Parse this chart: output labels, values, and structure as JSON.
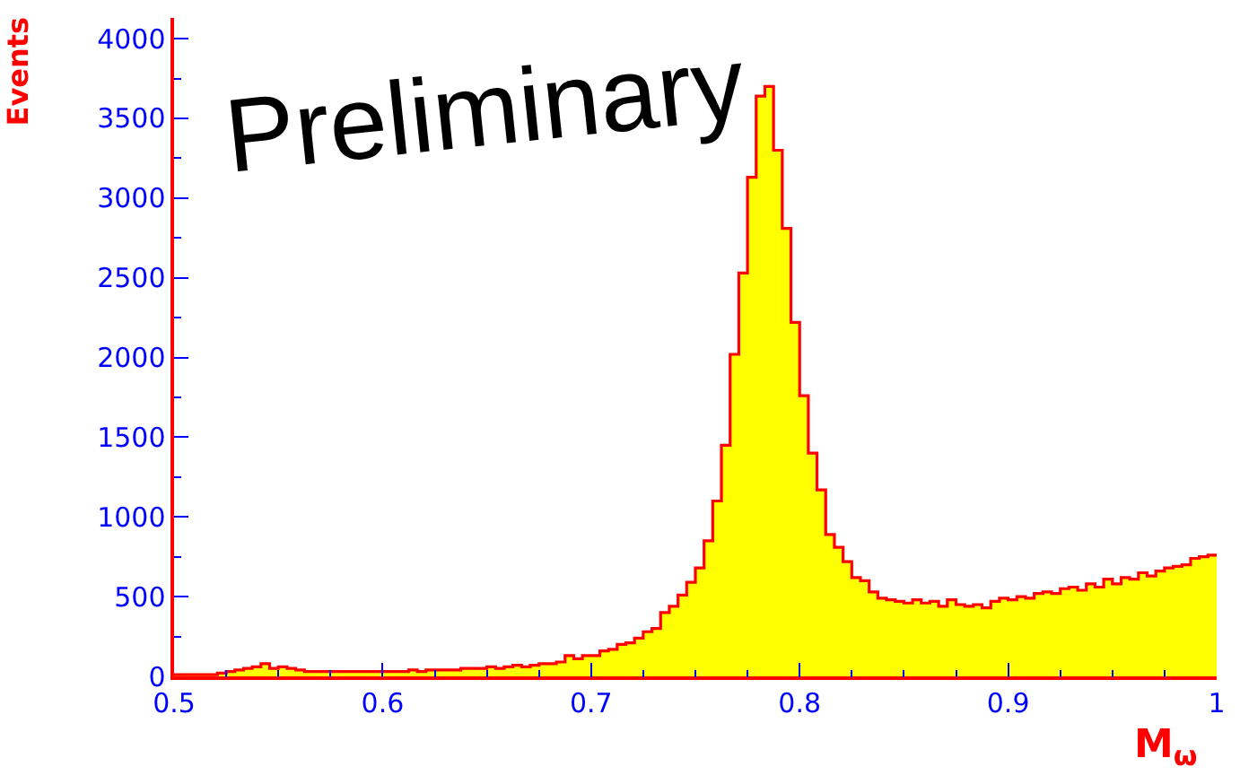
{
  "chart_data": {
    "type": "histogram",
    "xlabel": "M$_{ω}$",
    "ylabel": "Events",
    "annotations": [
      "Preliminary"
    ],
    "bins": [
      0.5,
      0.50417,
      0.50833,
      0.5125,
      0.51667,
      0.52083,
      0.525,
      0.52917,
      0.53333,
      0.5375,
      0.54167,
      0.54583,
      0.55,
      0.55417,
      0.55833,
      0.5625,
      0.56667,
      0.57083,
      0.575,
      0.57917,
      0.58333,
      0.5875,
      0.59167,
      0.59583,
      0.6,
      0.60417,
      0.60833,
      0.6125,
      0.61667,
      0.62083,
      0.625,
      0.62917,
      0.63333,
      0.6375,
      0.64167,
      0.64583,
      0.65,
      0.65417,
      0.65833,
      0.6625,
      0.66667,
      0.67083,
      0.675,
      0.67917,
      0.68333,
      0.6875,
      0.69167,
      0.69583,
      0.7,
      0.70417,
      0.70833,
      0.7125,
      0.71667,
      0.72083,
      0.725,
      0.72917,
      0.73333,
      0.7375,
      0.74167,
      0.74583,
      0.75,
      0.75417,
      0.75833,
      0.7625,
      0.76667,
      0.77083,
      0.775,
      0.77917,
      0.78333,
      0.7875,
      0.79167,
      0.79583,
      0.8,
      0.80417,
      0.80833,
      0.8125,
      0.81667,
      0.82083,
      0.825,
      0.82917,
      0.83333,
      0.8375,
      0.84167,
      0.84583,
      0.85,
      0.85417,
      0.85833,
      0.8625,
      0.86667,
      0.87083,
      0.875,
      0.87917,
      0.88333,
      0.8875,
      0.89167,
      0.89583,
      0.9,
      0.90417,
      0.90833,
      0.9125,
      0.91667,
      0.92083,
      0.925,
      0.92917,
      0.93333,
      0.9375,
      0.94167,
      0.94583,
      0.95,
      0.95417,
      0.95833,
      0.9625,
      0.96667,
      0.97083,
      0.975,
      0.97917,
      0.98333,
      0.9875,
      0.99167,
      0.99583,
      1.0
    ],
    "values": [
      10,
      10,
      10,
      10,
      10,
      20,
      30,
      40,
      50,
      60,
      80,
      50,
      60,
      50,
      40,
      30,
      30,
      30,
      30,
      30,
      30,
      30,
      30,
      30,
      30,
      30,
      30,
      40,
      30,
      40,
      40,
      40,
      40,
      50,
      50,
      50,
      60,
      50,
      60,
      70,
      60,
      70,
      80,
      80,
      90,
      130,
      110,
      130,
      130,
      160,
      170,
      200,
      210,
      240,
      280,
      300,
      400,
      440,
      510,
      590,
      680,
      850,
      1100,
      1450,
      2020,
      2530,
      3130,
      3640,
      3700,
      3300,
      2810,
      2220,
      1760,
      1400,
      1170,
      890,
      810,
      720,
      620,
      600,
      530,
      490,
      480,
      470,
      460,
      480,
      460,
      470,
      440,
      480,
      450,
      440,
      450,
      430,
      470,
      490,
      480,
      500,
      490,
      520,
      530,
      520,
      550,
      560,
      540,
      580,
      560,
      610,
      580,
      620,
      610,
      650,
      630,
      660,
      680,
      690,
      700,
      740,
      750,
      760
    ],
    "color": "#ffff00",
    "xlim": [
      0.5,
      1.0
    ],
    "xticks": [
      0.5,
      0.6,
      0.7,
      0.8,
      0.9,
      1
    ],
    "ylim": [
      0,
      4130
    ],
    "yticks": [
      0,
      500,
      1000,
      1500,
      2000,
      2500,
      3000,
      3500,
      4000
    ]
  }
}
